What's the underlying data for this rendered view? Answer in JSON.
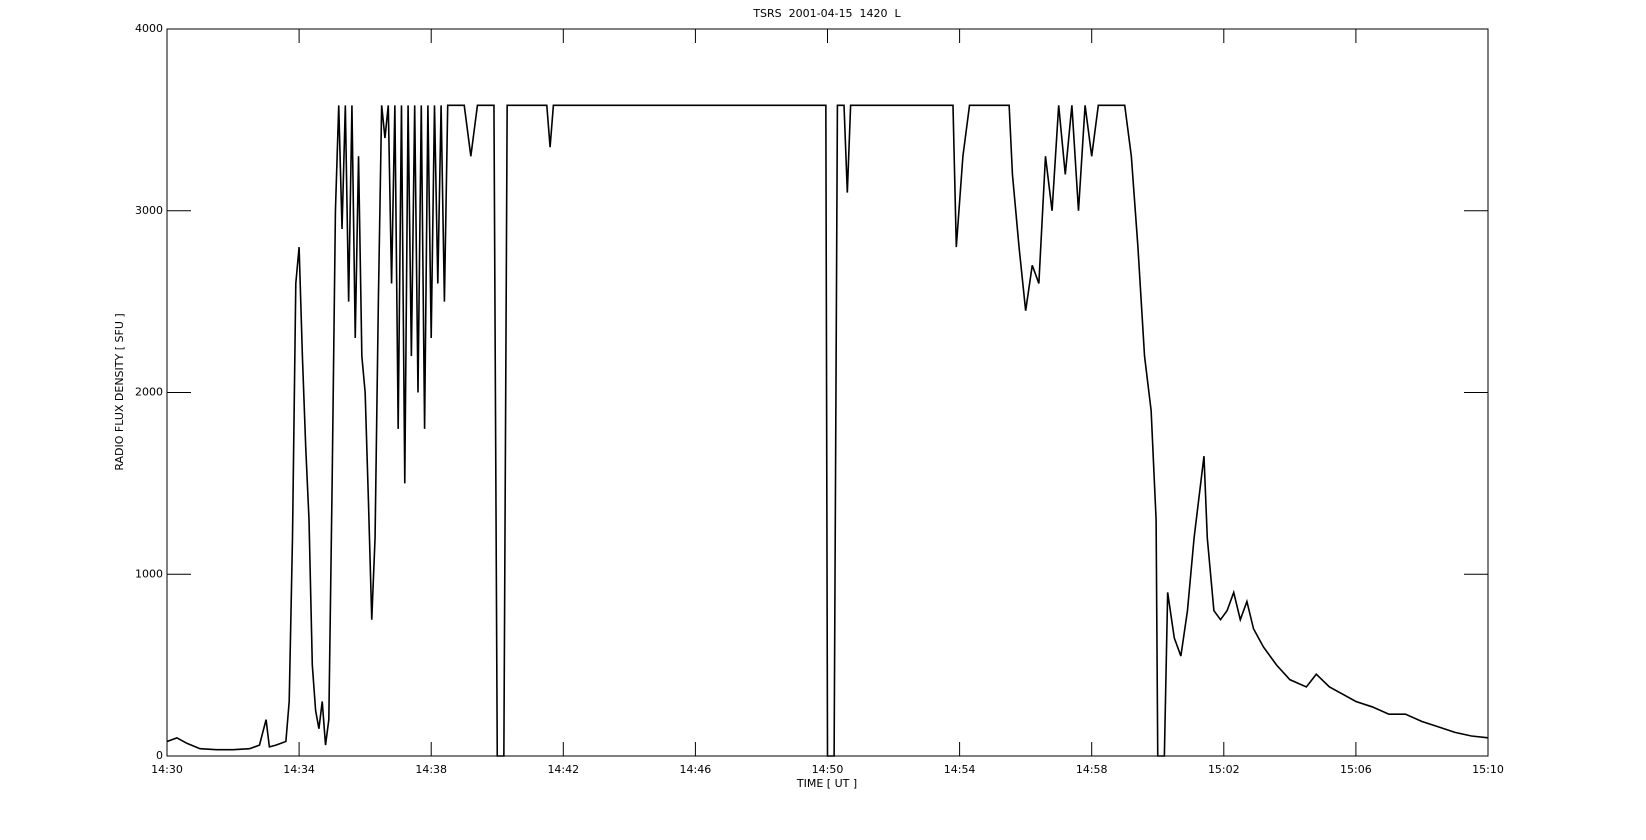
{
  "chart_data": {
    "type": "line",
    "title": "TSRS  2001-04-15  1420  L",
    "xlabel": "TIME [ UT ]",
    "ylabel": "RADIO FLUX DENSITY [ SFU ]",
    "x": [
      870,
      870.3,
      870.6,
      871,
      871.5,
      872,
      872.5,
      872.8,
      873,
      873.1,
      873.3,
      873.6,
      873.7,
      873.8,
      873.9,
      874,
      874.1,
      874.2,
      874.3,
      874.4,
      874.5,
      874.6,
      874.7,
      874.8,
      874.9,
      875,
      875.1,
      875.2,
      875.3,
      875.4,
      875.5,
      875.6,
      875.7,
      875.8,
      875.9,
      876,
      876.1,
      876.2,
      876.3,
      876.4,
      876.5,
      876.6,
      876.7,
      876.8,
      876.9,
      877,
      877.1,
      877.2,
      877.3,
      877.4,
      877.5,
      877.6,
      877.7,
      877.8,
      877.9,
      878,
      878.1,
      878.2,
      878.3,
      878.4,
      878.5,
      879,
      879.2,
      879.4,
      879.9,
      880,
      880.2,
      880.3,
      881.5,
      881.6,
      881.7,
      889.95,
      890,
      890.2,
      890.3,
      890.5,
      890.6,
      890.7,
      893.8,
      893.9,
      894.1,
      894.3,
      895.5,
      895.6,
      895.8,
      896,
      896.2,
      896.4,
      896.6,
      896.8,
      897,
      897.2,
      897.4,
      897.6,
      897.8,
      898,
      898.2,
      899,
      899.2,
      899.4,
      899.6,
      899.8,
      899.95,
      900,
      900.2,
      900.3,
      900.5,
      900.7,
      900.9,
      901.1,
      901.3,
      901.4,
      901.5,
      901.7,
      901.9,
      902.1,
      902.3,
      902.5,
      902.7,
      902.9,
      903.2,
      903.6,
      904,
      904.5,
      904.8,
      905.2,
      905.6,
      906,
      906.5,
      907,
      907.5,
      908,
      908.5,
      909,
      909.5,
      910
    ],
    "series": [
      {
        "color": "#000000",
        "values": [
          80,
          100,
          70,
          40,
          35,
          35,
          40,
          60,
          200,
          50,
          60,
          80,
          300,
          1200,
          2600,
          2800,
          2200,
          1700,
          1300,
          500,
          250,
          150,
          300,
          60,
          200,
          1500,
          3000,
          3580,
          2900,
          3580,
          2500,
          3580,
          2300,
          3300,
          2200,
          2000,
          1400,
          750,
          1200,
          2500,
          3580,
          3400,
          3580,
          2600,
          3580,
          1800,
          3580,
          1500,
          3580,
          2200,
          3580,
          2000,
          3580,
          1800,
          3580,
          2300,
          3580,
          2600,
          3580,
          2500,
          3580,
          3580,
          3300,
          3580,
          3580,
          0,
          0,
          3580,
          3580,
          3350,
          3580,
          3580,
          0,
          0,
          3580,
          3580,
          3100,
          3580,
          3580,
          2800,
          3300,
          3580,
          3580,
          3200,
          2800,
          2450,
          2700,
          2600,
          3300,
          3000,
          3580,
          3200,
          3580,
          3000,
          3580,
          3300,
          3580,
          3580,
          3300,
          2800,
          2200,
          1900,
          1300,
          0,
          0,
          900,
          650,
          550,
          800,
          1200,
          1500,
          1650,
          1200,
          800,
          750,
          800,
          900,
          750,
          850,
          700,
          600,
          500,
          420,
          380,
          450,
          380,
          340,
          300,
          270,
          230,
          230,
          190,
          160,
          130,
          110,
          100
        ]
      }
    ],
    "xlim": [
      870,
      910
    ],
    "xticks": [
      {
        "value": 870,
        "label": "14:30"
      },
      {
        "value": 874,
        "label": "14:34"
      },
      {
        "value": 878,
        "label": "14:38"
      },
      {
        "value": 882,
        "label": "14:42"
      },
      {
        "value": 886,
        "label": "14:46"
      },
      {
        "value": 890,
        "label": "14:50"
      },
      {
        "value": 894,
        "label": "14:54"
      },
      {
        "value": 898,
        "label": "14:58"
      },
      {
        "value": 902,
        "label": "15:02"
      },
      {
        "value": 906,
        "label": "15:06"
      },
      {
        "value": 910,
        "label": "15:10"
      }
    ],
    "ylim": [
      0,
      4000
    ],
    "yticks": [
      0,
      1000,
      2000,
      3000,
      4000
    ]
  }
}
